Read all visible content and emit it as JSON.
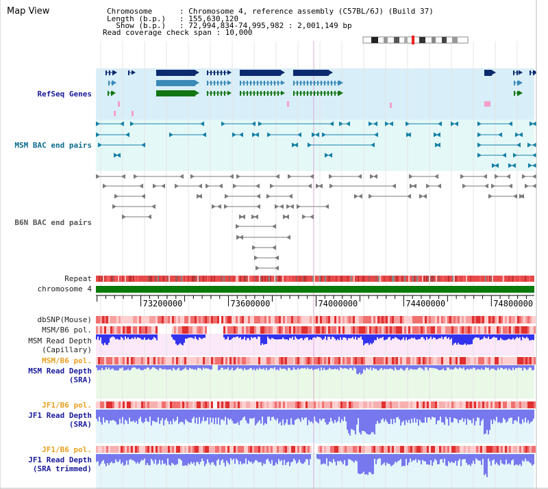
{
  "title": "Map View",
  "header": {
    "chromosome_key": "Chromosome",
    "chromosome_val": ": Chromosome 4, reference assembly (C57BL/6J) (Build 37)",
    "length_key": "Length (b.p.)",
    "length_val": ": 155,630,120",
    "show_key": "  Show (b.p.)",
    "show_val": ": 72,994,834-74,995,982 : 2,001,149 bp",
    "coverage": "Read coverage check span : 10,000"
  },
  "tracks": {
    "refseq": "RefSeq Genes",
    "msm_bac": "MSM BAC end pairs",
    "b6n_bac": "B6N BAC end pairs",
    "repeat": "Repeat",
    "chromosome": "chromosome 4",
    "dbsnp": "dbSNP(Mouse)",
    "msm_b6_pol_1": "MSM/B6 pol.",
    "msm_depth_cap": "MSM Read Depth\n(Capillary)",
    "msm_b6_pol_2": "MSM/B6 pol.",
    "msm_depth_sra": "MSM Read Depth\n(SRA)",
    "jf1_b6_pol_1": "JF1/B6 pol.",
    "jf1_depth_sra": "JF1 Read Depth\n(SRA)",
    "jf1_b6_pol_2": "JF1/B6 pol.",
    "jf1_depth_trim": "JF1 Read Depth\n(SRA trimmed)"
  },
  "axis": {
    "ticks": [
      "73200000",
      "73600000",
      "74000000",
      "74400000",
      "74800000"
    ],
    "tick_values": [
      73200000,
      73600000,
      74000000,
      74400000,
      74800000
    ],
    "range": [
      72994834,
      74995982
    ]
  },
  "colors": {
    "gene_navy": "#0c2a6e",
    "gene_mid": "#3a8ab8",
    "gene_green": "#137513",
    "refseq_bg": "#d8eef8",
    "msm_bg": "#e4f8f8",
    "msm_glyph": "#137fa6",
    "b6n_glyph": "#7a7a7a",
    "chrom_bar": "#0a7a0a",
    "depth_blue": "#3333ee",
    "depth_light": "#7777ee"
  }
}
